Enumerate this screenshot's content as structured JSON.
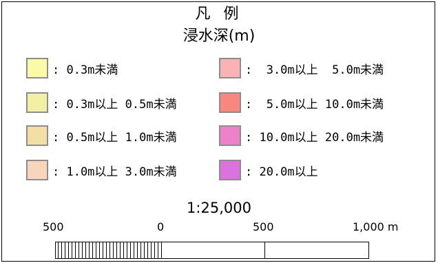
{
  "legend": {
    "title": "凡 例",
    "subtitle": "浸水深(m)",
    "items": [
      {
        "label": ": 0.3m未満",
        "color": "#fbfaa6"
      },
      {
        "label": ": 0.3m以上 0.5m未満",
        "color": "#f2f0a4"
      },
      {
        "label": ": 0.5m以上 1.0m未満",
        "color": "#f3dea4"
      },
      {
        "label": ": 1.0m以上 3.0m未満",
        "color": "#f9d5bd"
      },
      {
        "label": ":  3.0m以上  5.0m未満",
        "color": "#fab3b5"
      },
      {
        "label": ":  5.0m以上 10.0m未満",
        "color": "#f88780"
      },
      {
        "label": ": 10.0m以上 20.0m未満",
        "color": "#ee82c9"
      },
      {
        "label": ": 20.0m以上",
        "color": "#db72dd"
      }
    ]
  },
  "scale": {
    "ratio": "1:25,000",
    "ticks": [
      "500",
      "0",
      "500",
      "1,000 m"
    ]
  }
}
